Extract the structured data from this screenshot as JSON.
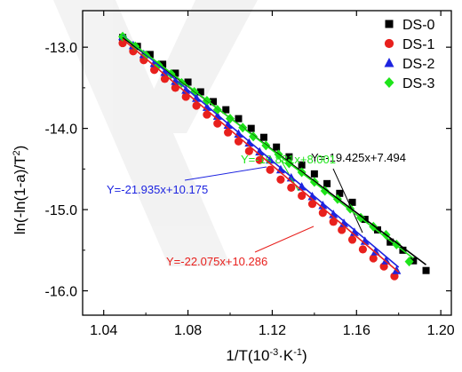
{
  "chart_data": {
    "type": "scatter",
    "title": "",
    "xlabel": "1/T(10",
    "xlabel_sup": "-3",
    "xlabel_tail": "·K",
    "xlabel_sup2": "-1",
    "xlabel_close": ")",
    "ylabel": "ln(-ln(1-a)/T",
    "ylabel_sup": "2",
    "ylabel_close": ")",
    "xlim": [
      1.03,
      1.205
    ],
    "ylim": [
      -16.3,
      -12.55
    ],
    "xticks": [
      1.04,
      1.08,
      1.12,
      1.16,
      1.2
    ],
    "xtick_labels": [
      "1.04",
      "1.08",
      "1.12",
      "1.16",
      "1.20"
    ],
    "yticks": [
      -13.0,
      -14.0,
      -15.0,
      -16.0
    ],
    "ytick_labels": [
      "-13.0",
      "-14.0",
      "-15.0",
      "-16.0"
    ],
    "legend_position": "top-right",
    "series": [
      {
        "name": "DS-0",
        "marker": "square",
        "color": "#000000",
        "x": [
          1.049,
          1.056,
          1.062,
          1.068,
          1.074,
          1.08,
          1.086,
          1.092,
          1.098,
          1.104,
          1.11,
          1.116,
          1.122,
          1.128,
          1.134,
          1.14,
          1.146,
          1.152,
          1.158,
          1.164,
          1.17,
          1.176,
          1.182,
          1.187,
          1.193
        ],
        "y": [
          -12.88,
          -12.99,
          -13.09,
          -13.21,
          -13.32,
          -13.43,
          -13.55,
          -13.67,
          -13.77,
          -13.88,
          -14.0,
          -14.11,
          -14.23,
          -14.35,
          -14.45,
          -14.56,
          -14.68,
          -14.8,
          -14.91,
          -15.12,
          -15.25,
          -15.4,
          -15.5,
          -15.63,
          -15.75
        ]
      },
      {
        "name": "DS-1",
        "marker": "circle",
        "color": "#e8201d",
        "x": [
          1.049,
          1.054,
          1.059,
          1.064,
          1.069,
          1.074,
          1.079,
          1.084,
          1.089,
          1.094,
          1.099,
          1.104,
          1.109,
          1.114,
          1.119,
          1.124,
          1.129,
          1.134,
          1.139,
          1.144,
          1.149,
          1.153,
          1.158,
          1.163,
          1.168,
          1.173,
          1.178
        ],
        "y": [
          -12.95,
          -13.05,
          -13.16,
          -13.28,
          -13.39,
          -13.5,
          -13.61,
          -13.72,
          -13.83,
          -13.94,
          -14.05,
          -14.16,
          -14.28,
          -14.39,
          -14.51,
          -14.63,
          -14.73,
          -14.83,
          -14.93,
          -15.04,
          -15.15,
          -15.25,
          -15.37,
          -15.49,
          -15.6,
          -15.7,
          -15.82
        ]
      },
      {
        "name": "DS-2",
        "marker": "triangle",
        "color": "#1d24e0",
        "x": [
          1.049,
          1.054,
          1.059,
          1.064,
          1.069,
          1.074,
          1.079,
          1.084,
          1.089,
          1.094,
          1.099,
          1.104,
          1.109,
          1.114,
          1.119,
          1.124,
          1.129,
          1.134,
          1.139,
          1.144,
          1.149,
          1.154,
          1.159,
          1.164,
          1.169,
          1.174,
          1.179
        ],
        "y": [
          -12.87,
          -12.98,
          -13.09,
          -13.2,
          -13.31,
          -13.42,
          -13.53,
          -13.63,
          -13.74,
          -13.85,
          -13.96,
          -14.07,
          -14.18,
          -14.29,
          -14.39,
          -14.51,
          -14.61,
          -14.72,
          -14.84,
          -14.95,
          -15.06,
          -15.17,
          -15.28,
          -15.39,
          -15.52,
          -15.63,
          -15.75
        ]
      },
      {
        "name": "DS-3",
        "marker": "diamond",
        "color": "#1ee41a",
        "x": [
          1.049,
          1.055,
          1.06,
          1.066,
          1.072,
          1.077,
          1.083,
          1.089,
          1.094,
          1.1,
          1.106,
          1.111,
          1.117,
          1.123,
          1.128,
          1.134,
          1.14,
          1.145,
          1.151,
          1.157,
          1.162,
          1.168,
          1.174,
          1.179,
          1.185
        ],
        "y": [
          -12.87,
          -12.99,
          -13.1,
          -13.22,
          -13.33,
          -13.44,
          -13.55,
          -13.66,
          -13.77,
          -13.88,
          -13.99,
          -14.1,
          -14.21,
          -14.32,
          -14.43,
          -14.54,
          -14.66,
          -14.77,
          -14.87,
          -14.99,
          -15.1,
          -15.21,
          -15.31,
          -15.43,
          -15.64
        ]
      }
    ],
    "fits": [
      {
        "series": "DS-0",
        "color": "#000000",
        "x": [
          1.049,
          1.193
        ],
        "y": [
          -12.88,
          -15.68
        ],
        "label": "Y=-19.425x+7.494"
      },
      {
        "series": "DS-1",
        "color": "#e8201d",
        "x": [
          1.049,
          1.18
        ],
        "y": [
          -12.9,
          -15.77
        ],
        "label": "Y=-22.075x+10.286"
      },
      {
        "series": "DS-2",
        "color": "#1d24e0",
        "x": [
          1.049,
          1.18
        ],
        "y": [
          -12.85,
          -15.71
        ],
        "label": "Y=-21.935x+10.175"
      },
      {
        "series": "DS-3",
        "color": "#1ee41a",
        "x": [
          1.049,
          1.187
        ],
        "y": [
          -12.86,
          -15.6
        ],
        "label": "Y=-19.881x+8.001"
      }
    ]
  }
}
